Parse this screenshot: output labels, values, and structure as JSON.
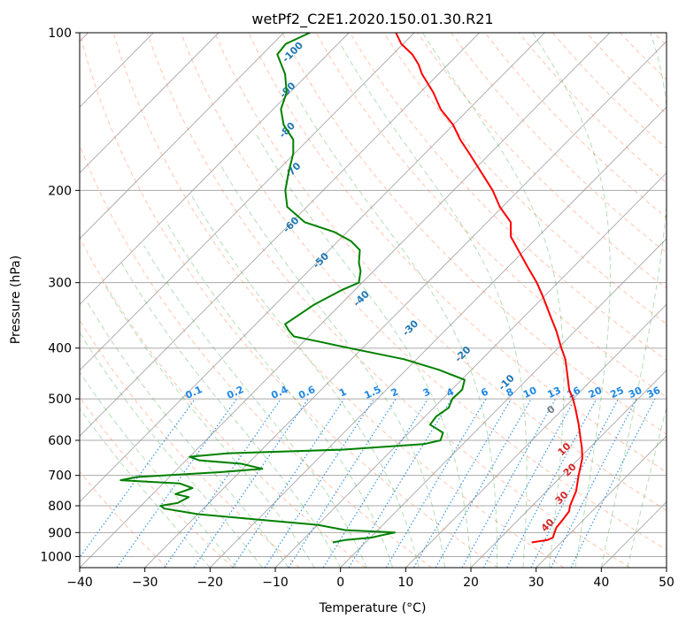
{
  "chart_data": {
    "type": "line",
    "chart_kind": "skew-T log-p diagram",
    "title": "wetPf2_C2E1.2020.150.01.30.R21",
    "xlabel": "Temperature (°C)",
    "ylabel": "Pressure (hPa)",
    "xlim": [
      -40,
      50
    ],
    "ylim": [
      1050,
      100
    ],
    "y_scale": "log",
    "grid": true,
    "x_ticks": [
      -40,
      -30,
      -20,
      -10,
      0,
      10,
      20,
      30,
      40,
      50
    ],
    "x_tick_labels": [
      "−40",
      "−30",
      "−20",
      "−10",
      "0",
      "10",
      "20",
      "30",
      "40",
      "50"
    ],
    "y_ticks": [
      100,
      200,
      300,
      400,
      500,
      600,
      700,
      800,
      900,
      1000
    ],
    "y_tick_labels": [
      "100",
      "200",
      "300",
      "400",
      "500",
      "600",
      "700",
      "800",
      "900",
      "1000"
    ],
    "series": [
      {
        "role": "temperature",
        "color": "#ff0000",
        "points": [
          [
            940,
            25.5
          ],
          [
            930,
            27.5
          ],
          [
            920,
            28.0
          ],
          [
            900,
            27.5
          ],
          [
            880,
            27.0
          ],
          [
            850,
            26.8
          ],
          [
            820,
            26.5
          ],
          [
            800,
            25.8
          ],
          [
            750,
            24.5
          ],
          [
            700,
            22.5
          ],
          [
            650,
            20.5
          ],
          [
            620,
            18.8
          ],
          [
            600,
            17.5
          ],
          [
            560,
            14.8
          ],
          [
            520,
            11.7
          ],
          [
            500,
            10.0
          ],
          [
            480,
            8.0
          ],
          [
            450,
            5.5
          ],
          [
            420,
            2.8
          ],
          [
            400,
            0.5
          ],
          [
            370,
            -3.0
          ],
          [
            350,
            -5.7
          ],
          [
            320,
            -10.0
          ],
          [
            300,
            -13.2
          ],
          [
            280,
            -17.0
          ],
          [
            260,
            -21.0
          ],
          [
            245,
            -24.2
          ],
          [
            230,
            -26.4
          ],
          [
            215,
            -30.4
          ],
          [
            200,
            -34.0
          ],
          [
            185,
            -38.4
          ],
          [
            170,
            -43.2
          ],
          [
            160,
            -46.7
          ],
          [
            150,
            -50.0
          ],
          [
            140,
            -54.3
          ],
          [
            130,
            -58.0
          ],
          [
            120,
            -62.5
          ],
          [
            115,
            -64.5
          ],
          [
            110,
            -67.0
          ],
          [
            105,
            -70.3
          ],
          [
            100,
            -72.8
          ]
        ]
      },
      {
        "role": "dewpoint",
        "color": "#008000",
        "points": [
          [
            940,
            -5.0
          ],
          [
            930,
            -3.5
          ],
          [
            920,
            0.2
          ],
          [
            910,
            1.5
          ],
          [
            900,
            3.0
          ],
          [
            890,
            -5.0
          ],
          [
            870,
            -10.0
          ],
          [
            850,
            -20.0
          ],
          [
            830,
            -30.0
          ],
          [
            810,
            -36.0
          ],
          [
            800,
            -37.0
          ],
          [
            790,
            -34.8
          ],
          [
            770,
            -34.0
          ],
          [
            760,
            -36.5
          ],
          [
            740,
            -34.8
          ],
          [
            725,
            -37.5
          ],
          [
            715,
            -47.0
          ],
          [
            705,
            -45.0
          ],
          [
            690,
            -33.0
          ],
          [
            680,
            -27.0
          ],
          [
            665,
            -31.0
          ],
          [
            655,
            -38.0
          ],
          [
            645,
            -40.0
          ],
          [
            635,
            -34.5
          ],
          [
            625,
            -17.5
          ],
          [
            610,
            -6.0
          ],
          [
            600,
            -4.0
          ],
          [
            580,
            -4.8
          ],
          [
            560,
            -8.0
          ],
          [
            540,
            -8.3
          ],
          [
            520,
            -7.7
          ],
          [
            500,
            -8.5
          ],
          [
            480,
            -8.4
          ],
          [
            460,
            -9.5
          ],
          [
            440,
            -15.0
          ],
          [
            420,
            -22.0
          ],
          [
            400,
            -32.0
          ],
          [
            390,
            -37.0
          ],
          [
            380,
            -42.3
          ],
          [
            370,
            -44.0
          ],
          [
            360,
            -45.5
          ],
          [
            350,
            -45.0
          ],
          [
            330,
            -44.0
          ],
          [
            310,
            -42.0
          ],
          [
            300,
            -40.5
          ],
          [
            285,
            -42.0
          ],
          [
            275,
            -43.5
          ],
          [
            260,
            -45.3
          ],
          [
            250,
            -48.0
          ],
          [
            240,
            -52.0
          ],
          [
            230,
            -58.0
          ],
          [
            215,
            -63.0
          ],
          [
            200,
            -65.8
          ],
          [
            185,
            -68.0
          ],
          [
            170,
            -70.2
          ],
          [
            160,
            -72.3
          ],
          [
            150,
            -76.0
          ],
          [
            140,
            -78.8
          ],
          [
            130,
            -80.5
          ],
          [
            120,
            -83.5
          ],
          [
            110,
            -87.7
          ],
          [
            105,
            -88.0
          ],
          [
            100,
            -86.0
          ]
        ]
      }
    ],
    "mixing_ratio_lines": {
      "color": "#1e88e5",
      "values": [
        0.1,
        0.2,
        0.4,
        0.6,
        1,
        1.5,
        2,
        3,
        4,
        6,
        8,
        10,
        13,
        16,
        20,
        25,
        30,
        36
      ],
      "labels": [
        "0.1",
        "0.2",
        "0.4",
        "0.6",
        "1",
        "1.5",
        "2",
        "3",
        "4",
        "6",
        "8",
        "10",
        "13",
        "16",
        "20",
        "25",
        "30",
        "36"
      ],
      "label_pressure": 500
    },
    "freezing_level_labels": [
      {
        "text": "-100",
        "temperature": -85,
        "pressure": 110
      },
      {
        "text": "-90",
        "temperature": -80,
        "pressure": 130
      },
      {
        "text": "-80",
        "temperature": -74,
        "pressure": 155
      },
      {
        "text": "-70",
        "temperature": -67,
        "pressure": 185
      },
      {
        "text": "-60",
        "temperature": -59,
        "pressure": 235
      },
      {
        "text": "-50",
        "temperature": -49,
        "pressure": 275
      },
      {
        "text": "-40",
        "temperature": -37,
        "pressure": 325
      },
      {
        "text": "-30",
        "temperature": -25,
        "pressure": 370
      },
      {
        "text": "-20",
        "temperature": -13,
        "pressure": 415
      },
      {
        "text": "-10",
        "temperature": -2,
        "pressure": 470
      },
      {
        "text": "0",
        "temperature": 9,
        "pressure": 530
      }
    ],
    "moist_adiabat_labels": [
      {
        "text": "10",
        "temperature": 17,
        "pressure": 630
      },
      {
        "text": "20",
        "temperature": 21,
        "pressure": 690
      },
      {
        "text": "30",
        "temperature": 24,
        "pressure": 780
      },
      {
        "text": "40",
        "temperature": 26,
        "pressure": 880
      }
    ],
    "colors": {
      "dry_adiabats": "#ff7f50",
      "moist_adiabats": "#2ca02c",
      "isotherms": "#777777",
      "isobars": "#999999",
      "label_blue": "#1f77b4",
      "label_red": "#d62728",
      "label_gray": "#7f7f7f"
    }
  }
}
